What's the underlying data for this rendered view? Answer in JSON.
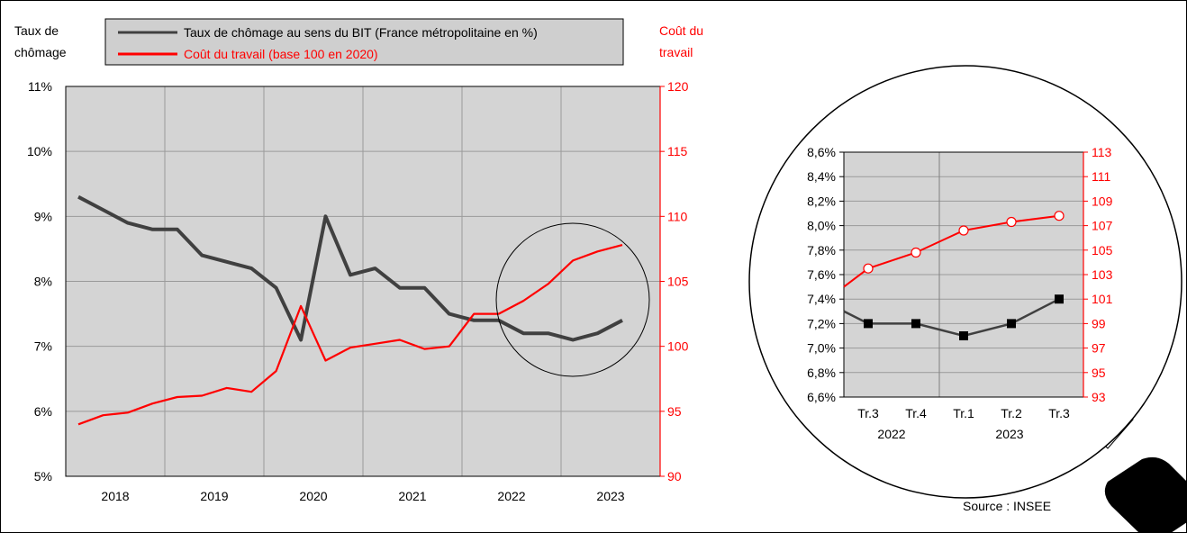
{
  "labels": {
    "left_axis_title": [
      "Taux de",
      "chômage"
    ],
    "right_axis_title": [
      "Coût du",
      "travail"
    ],
    "source": "Source : INSEE"
  },
  "colors": {
    "unemployment": "#404040",
    "labour_cost": "#ff0000",
    "plot_bg": "#d4d4d4",
    "legend_bg": "#cfcfcf"
  },
  "chart_data": [
    {
      "type": "line",
      "title": "",
      "x_ticks": [
        "2018",
        "2019",
        "2020",
        "2021",
        "2022",
        "2023"
      ],
      "legend_position": "top",
      "grid": true,
      "y_left": {
        "label": "Taux de chômage",
        "ticks": [
          "5%",
          "6%",
          "7%",
          "8%",
          "9%",
          "10%",
          "11%"
        ],
        "range": [
          5,
          11
        ]
      },
      "y_right": {
        "label": "Coût du travail",
        "ticks": [
          "90",
          "95",
          "100",
          "105",
          "110",
          "115",
          "120"
        ],
        "range": [
          90,
          120
        ]
      },
      "series": [
        {
          "name": "Taux de chômage au sens du BIT (France métropolitaine en %)",
          "axis": "left",
          "values": [
            9.3,
            9.1,
            8.9,
            8.8,
            8.8,
            8.4,
            8.3,
            8.2,
            7.9,
            7.1,
            9.0,
            8.1,
            8.2,
            7.9,
            7.9,
            7.5,
            7.4,
            7.4,
            7.2,
            7.2,
            7.1,
            7.2,
            7.4
          ]
        },
        {
          "name": "Coût du travail (base 100 en 2020)",
          "axis": "right",
          "values": [
            94.0,
            94.7,
            94.9,
            95.6,
            96.1,
            96.2,
            96.8,
            96.5,
            98.1,
            103.1,
            98.9,
            99.9,
            100.2,
            100.5,
            99.8,
            100.0,
            102.5,
            102.5,
            103.5,
            104.8,
            106.6,
            107.3,
            107.8
          ]
        }
      ]
    },
    {
      "type": "line",
      "title": "",
      "categories": [
        "Tr.3",
        "Tr.4",
        "Tr.1",
        "Tr.2",
        "Tr.3"
      ],
      "year_labels": [
        "2022",
        "2023"
      ],
      "grid": true,
      "y_left": {
        "ticks": [
          "6,6%",
          "6,8%",
          "7,0%",
          "7,2%",
          "7,4%",
          "7,6%",
          "7,8%",
          "8,0%",
          "8,2%",
          "8,4%",
          "8,6%"
        ],
        "range": [
          6.6,
          8.6
        ]
      },
      "y_right": {
        "ticks": [
          "93",
          "95",
          "97",
          "99",
          "101",
          "103",
          "105",
          "107",
          "109",
          "111",
          "113"
        ],
        "range": [
          93,
          113
        ]
      },
      "series": [
        {
          "name": "Taux de chômage",
          "axis": "left",
          "start_value": 7.3,
          "values": [
            7.2,
            7.2,
            7.1,
            7.2,
            7.4
          ]
        },
        {
          "name": "Coût du travail",
          "axis": "right",
          "start_value": 102.0,
          "values": [
            103.5,
            104.8,
            106.6,
            107.3,
            107.8
          ]
        }
      ]
    }
  ]
}
